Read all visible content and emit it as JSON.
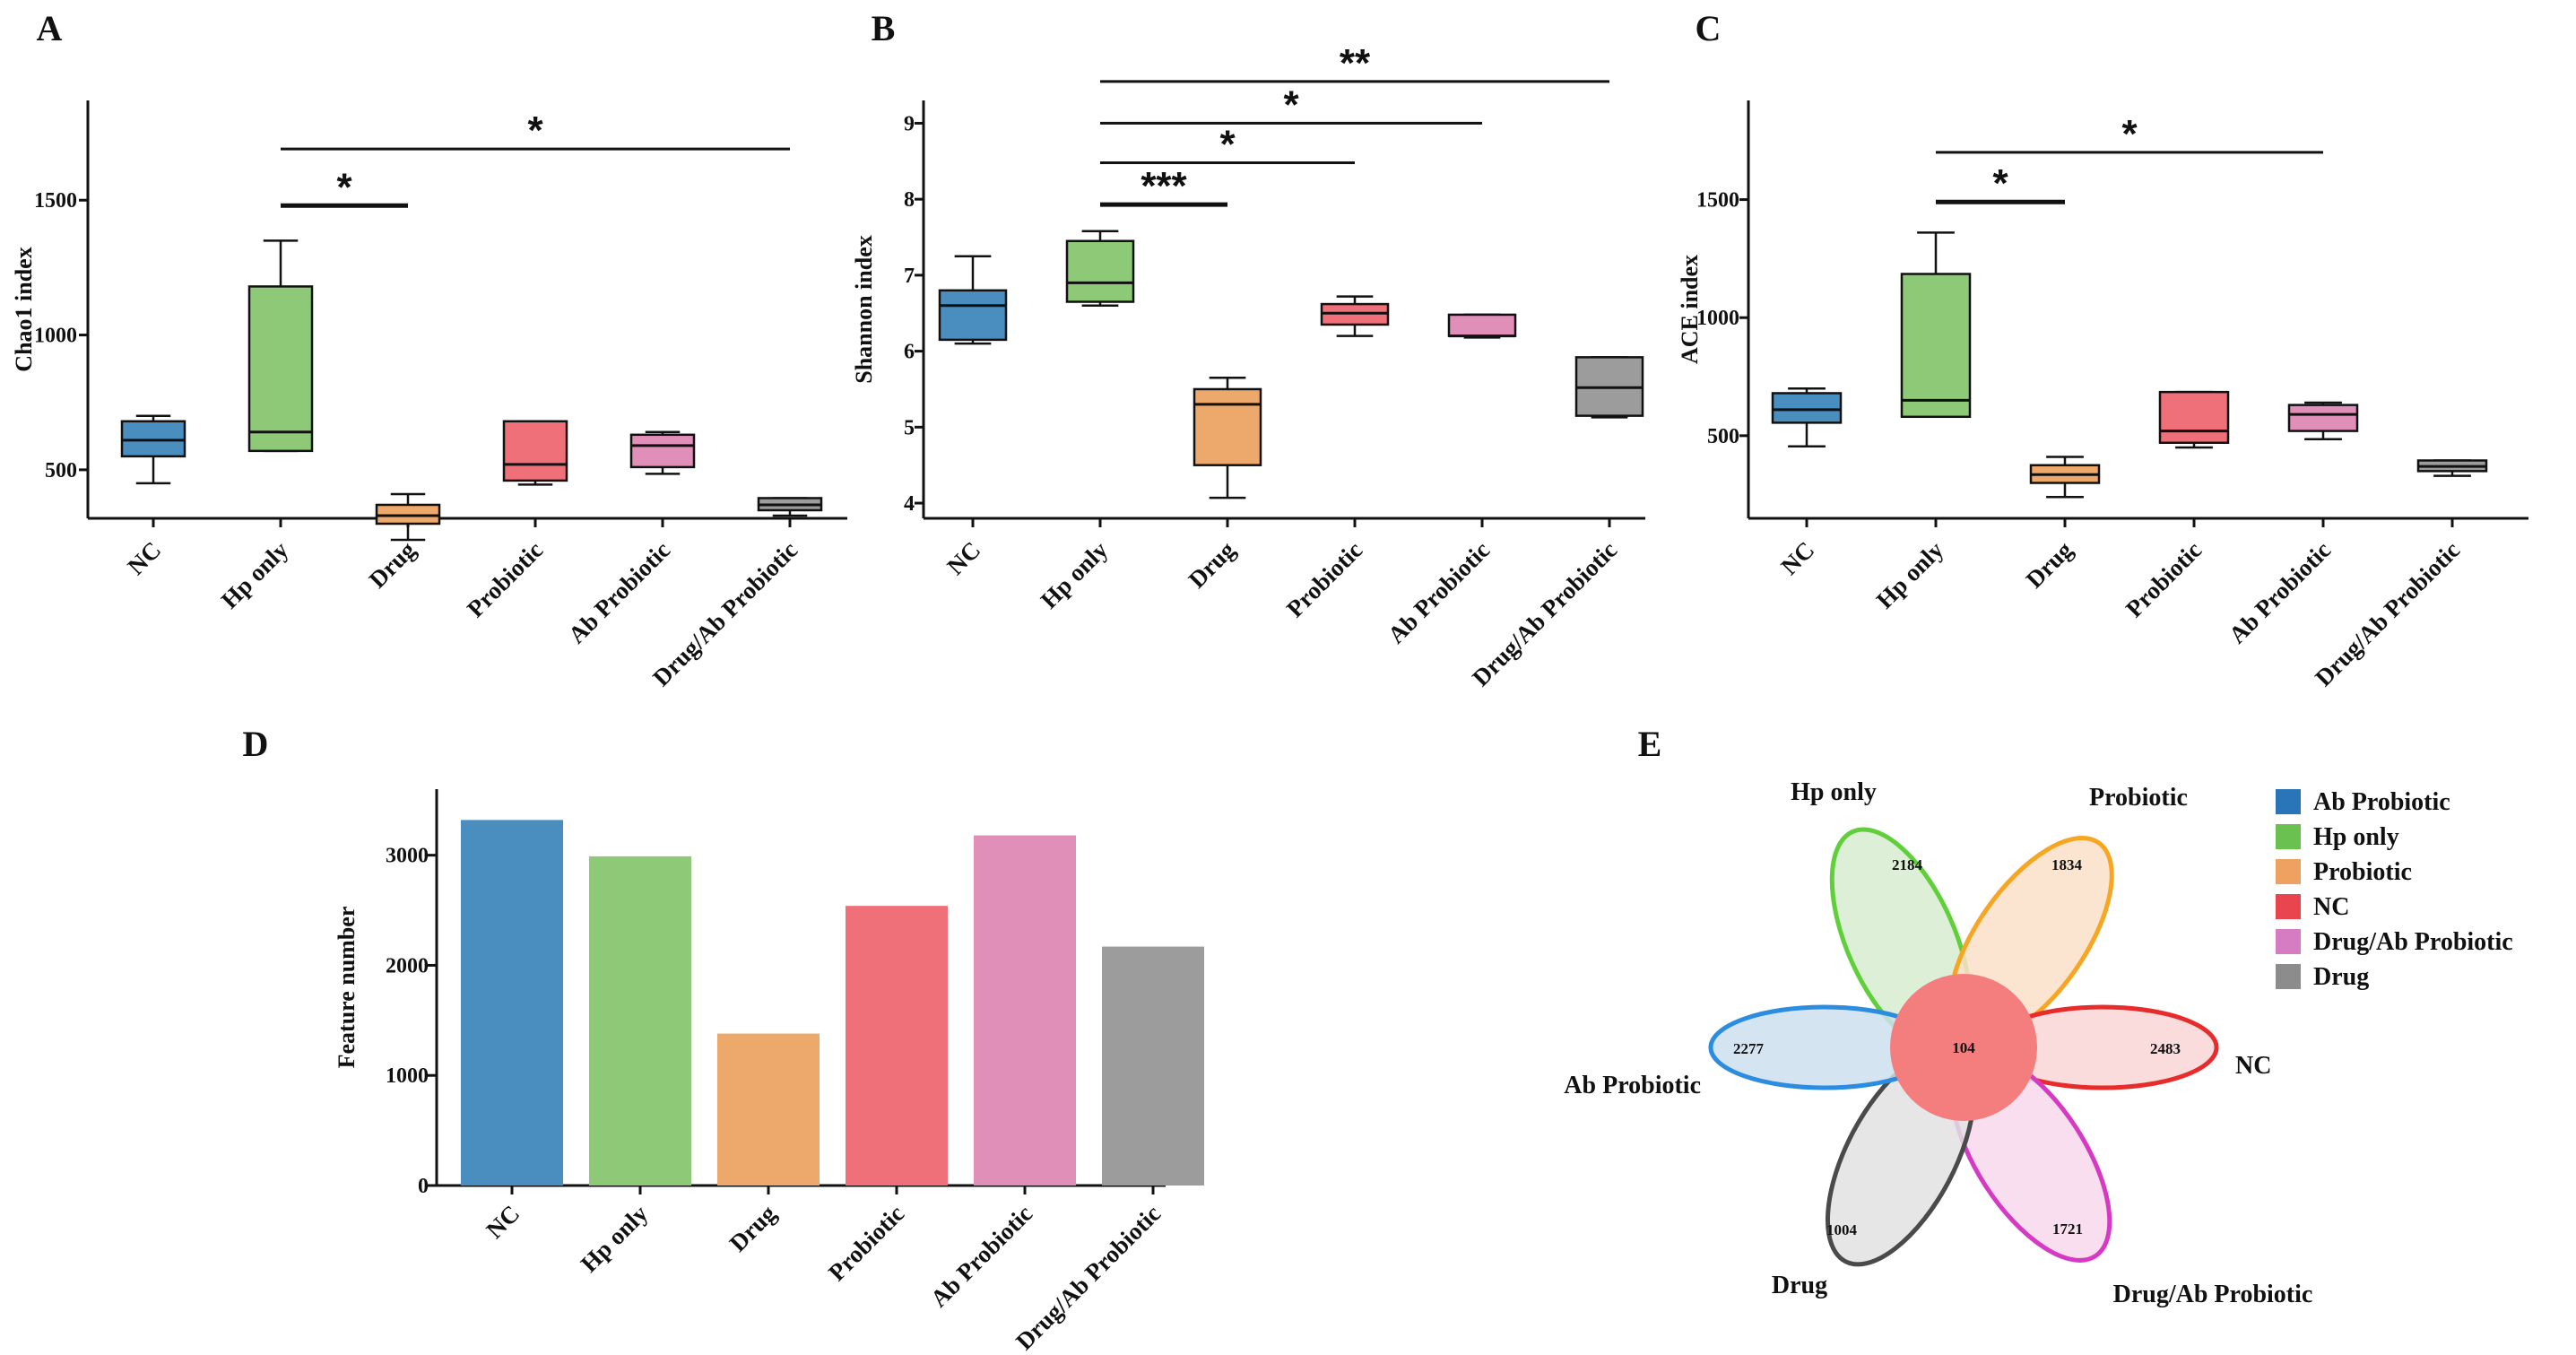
{
  "chart_data": [
    {
      "panel": "A",
      "type": "box",
      "ylabel": "Chao1 index",
      "ylim": [
        320,
        1870
      ],
      "yticks": [
        500,
        1000,
        1500
      ],
      "categories": [
        "NC",
        "Hp only",
        "Drug",
        "Probiotic",
        "Ab Probiotic",
        "Drug/Ab Probiotic"
      ],
      "colors": [
        "#4a8ec0",
        "#8ec978",
        "#eda86c",
        "#f0707a",
        "#e08fb8",
        "#9c9c9c"
      ],
      "boxes": [
        {
          "min": 450,
          "q1": 550,
          "median": 610,
          "q3": 680,
          "max": 700
        },
        {
          "min": 570,
          "q1": 570,
          "median": 640,
          "q3": 1180,
          "max": 1350
        },
        {
          "min": 240,
          "q1": 300,
          "median": 330,
          "q3": 370,
          "max": 410
        },
        {
          "min": 445,
          "q1": 460,
          "median": 520,
          "q3": 680,
          "max": 680
        },
        {
          "min": 485,
          "q1": 510,
          "median": 590,
          "q3": 630,
          "max": 640
        },
        {
          "min": 330,
          "q1": 350,
          "median": 370,
          "q3": 395,
          "max": 395
        }
      ],
      "significance": [
        {
          "from": "Hp only",
          "to": "Drug",
          "label": "*",
          "y": 1480
        },
        {
          "from": "Hp only",
          "to": "Drug/Ab Probiotic",
          "label": "*",
          "y": 1690
        }
      ]
    },
    {
      "panel": "B",
      "type": "box",
      "ylabel": "Shannon index",
      "ylim": [
        3.8,
        9.3
      ],
      "yticks": [
        4,
        5,
        6,
        7,
        8,
        9
      ],
      "categories": [
        "NC",
        "Hp only",
        "Drug",
        "Probiotic",
        "Ab Probiotic",
        "Drug/Ab Probiotic"
      ],
      "colors": [
        "#4a8ec0",
        "#8ec978",
        "#eda86c",
        "#f0707a",
        "#e08fb8",
        "#9c9c9c"
      ],
      "boxes": [
        {
          "min": 6.1,
          "q1": 6.15,
          "median": 6.6,
          "q3": 6.8,
          "max": 7.25
        },
        {
          "min": 6.6,
          "q1": 6.65,
          "median": 6.9,
          "q3": 7.45,
          "max": 7.58
        },
        {
          "min": 4.07,
          "q1": 4.5,
          "median": 5.3,
          "q3": 5.5,
          "max": 5.65
        },
        {
          "min": 6.2,
          "q1": 6.35,
          "median": 6.5,
          "q3": 6.62,
          "max": 6.72
        },
        {
          "min": 6.18,
          "q1": 6.2,
          "median": 6.2,
          "q3": 6.48,
          "max": 6.48
        },
        {
          "min": 5.13,
          "q1": 5.15,
          "median": 5.52,
          "q3": 5.92,
          "max": 5.92
        }
      ],
      "significance": [
        {
          "from": "Hp only",
          "to": "Drug",
          "label": "***",
          "y": 7.93
        },
        {
          "from": "Hp only",
          "to": "Probiotic",
          "label": "*",
          "y": 8.48
        },
        {
          "from": "Hp only",
          "to": "Ab Probiotic",
          "label": "*",
          "y": 9.0
        },
        {
          "from": "Hp only",
          "to": "Drug/Ab Probiotic",
          "label": "**",
          "y": 9.55
        }
      ]
    },
    {
      "panel": "C",
      "type": "box",
      "ylabel": "ACE index",
      "ylim": [
        150,
        1920
      ],
      "yticks": [
        500,
        1000,
        1500
      ],
      "categories": [
        "NC",
        "Hp only",
        "Drug",
        "Probiotic",
        "Ab Probiotic",
        "Drug/Ab Probiotic"
      ],
      "colors": [
        "#4a8ec0",
        "#8ec978",
        "#eda86c",
        "#f0707a",
        "#e08fb8",
        "#9c9c9c"
      ],
      "boxes": [
        {
          "min": 455,
          "q1": 555,
          "median": 610,
          "q3": 680,
          "max": 700
        },
        {
          "min": 580,
          "q1": 580,
          "median": 650,
          "q3": 1185,
          "max": 1360
        },
        {
          "min": 240,
          "q1": 300,
          "median": 335,
          "q3": 375,
          "max": 410
        },
        {
          "min": 450,
          "q1": 470,
          "median": 520,
          "q3": 685,
          "max": 685
        },
        {
          "min": 485,
          "q1": 520,
          "median": 590,
          "q3": 630,
          "max": 640
        },
        {
          "min": 330,
          "q1": 350,
          "median": 370,
          "q3": 395,
          "max": 395
        }
      ],
      "significance": [
        {
          "from": "Hp only",
          "to": "Drug",
          "label": "*",
          "y": 1490
        },
        {
          "from": "Hp only",
          "to": "Ab Probiotic",
          "label": "*",
          "y": 1700
        }
      ]
    },
    {
      "panel": "D",
      "type": "bar",
      "ylabel": "Feature number",
      "ylim": [
        0,
        3600
      ],
      "yticks": [
        0,
        1000,
        2000,
        3000
      ],
      "categories": [
        "NC",
        "Hp only",
        "Drug",
        "Probiotic",
        "Ab Probiotic",
        "Drug/Ab Probiotic"
      ],
      "values": [
        3320,
        2990,
        1380,
        2540,
        3180,
        2170
      ],
      "colors": [
        "#4a8ec0",
        "#8ec978",
        "#eda86c",
        "#f0707a",
        "#e08fb8",
        "#9c9c9c"
      ]
    },
    {
      "panel": "E",
      "type": "venn",
      "core": 104,
      "petals": [
        {
          "name": "Hp only",
          "count": 2184,
          "angle": -20,
          "stroke": "#5fcf3a",
          "fill": "#d8ecd0"
        },
        {
          "name": "Probiotic",
          "count": 1834,
          "angle": 33,
          "stroke": "#f6a623",
          "fill": "#fbe0c8"
        },
        {
          "name": "NC",
          "count": 2483,
          "angle": 0,
          "stroke": "#e82c2c",
          "fill": "#f9d6d6"
        },
        {
          "name": "Drug/Ab Probiotic",
          "count": 1721,
          "angle": -33,
          "stroke": "#d63ac4",
          "fill": "#f8d8ec"
        },
        {
          "name": "Drug",
          "count": 1004,
          "angle": 20,
          "stroke": "#4a4a4a",
          "fill": "#e2e2e2"
        },
        {
          "name": "Ab Probiotic",
          "count": 2277,
          "angle": 0,
          "stroke": "#2b8ce0",
          "fill": "#cde0ee"
        }
      ],
      "core_color": "#f47e7e",
      "legend": [
        {
          "label": "Ab Probiotic",
          "color": "#2a74b8"
        },
        {
          "label": "Hp only",
          "color": "#6ac14f"
        },
        {
          "label": "Probiotic",
          "color": "#eda261"
        },
        {
          "label": "NC",
          "color": "#e8454f"
        },
        {
          "label": "Drug/Ab Probiotic",
          "color": "#d67cc3"
        },
        {
          "label": "Drug",
          "color": "#8c8c8c"
        }
      ]
    }
  ]
}
